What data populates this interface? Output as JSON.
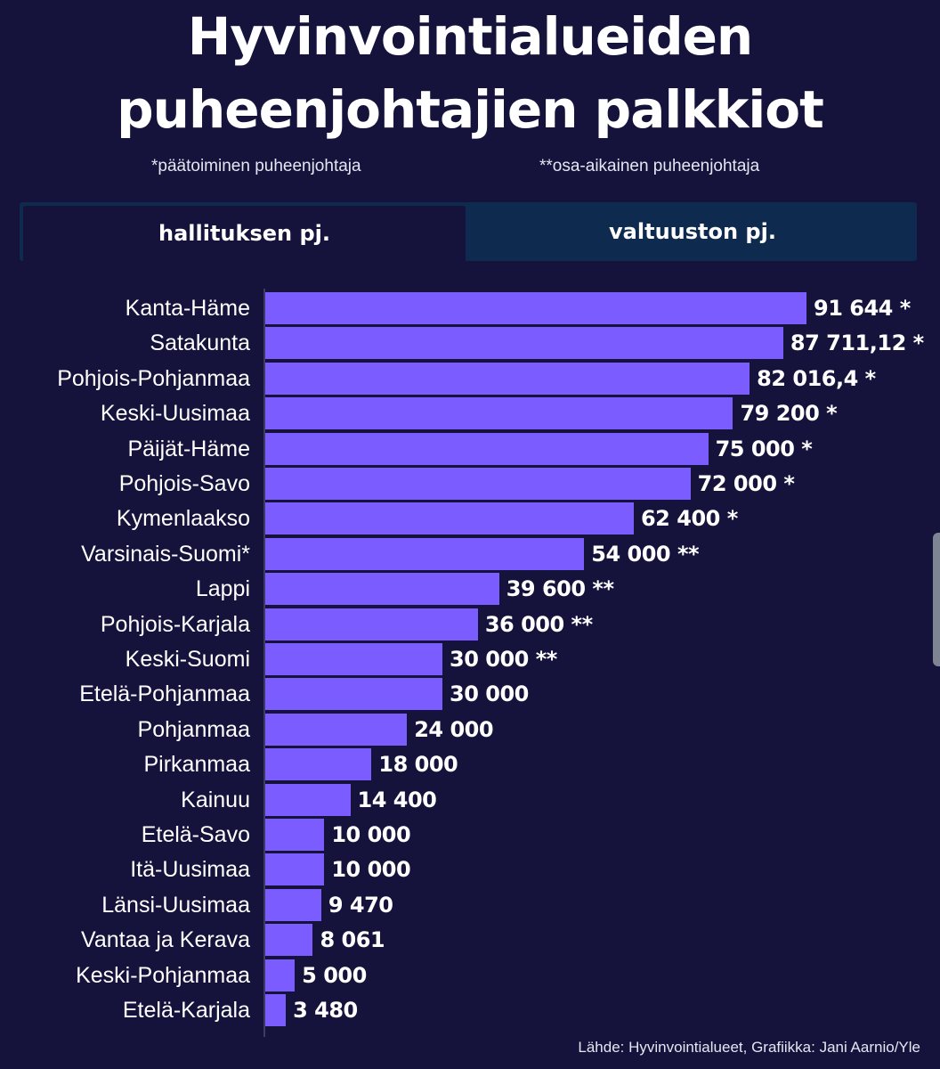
{
  "title": {
    "line1": "Hyvinvointialueiden",
    "line2": "puheenjohtajien palkkiot"
  },
  "notes": {
    "fulltime": "*päätoiminen puheenjohtaja",
    "parttime": "**osa-aikainen puheenjohtaja"
  },
  "tabs": [
    {
      "label": "hallituksen pj.",
      "active": true
    },
    {
      "label": "valtuuston pj.",
      "active": false
    }
  ],
  "source": "Lähde: Hyvinvointialueet, Grafiikka: Jani Aarnio/Yle",
  "colors": {
    "background": "#15123b",
    "bar": "#7a5cff",
    "tab_bar": "#0e2a4e"
  },
  "chart_data": {
    "type": "bar",
    "orientation": "horizontal",
    "title": "Hyvinvointialueiden puheenjohtajien palkkiot",
    "categories": [
      "Kanta-Häme",
      "Satakunta",
      "Pohjois-Pohjanmaa",
      "Keski-Uusimaa",
      "Päijät-Häme",
      "Pohjois-Savo",
      "Kymenlaakso",
      "Varsinais-Suomi*",
      "Lappi",
      "Pohjois-Karjala",
      "Keski-Suomi",
      "Etelä-Pohjanmaa",
      "Pohjanmaa",
      "Pirkanmaa",
      "Kainuu",
      "Etelä-Savo",
      "Itä-Uusimaa",
      "Länsi-Uusimaa",
      "Vantaa ja Kerava",
      "Keski-Pohjanmaa",
      "Etelä-Karjala"
    ],
    "values": [
      91644,
      87711.12,
      82016.4,
      79200,
      75000,
      72000,
      62400,
      54000,
      39600,
      36000,
      30000,
      30000,
      24000,
      18000,
      14400,
      10000,
      10000,
      9470,
      8061,
      5000,
      3480
    ],
    "value_labels": [
      "91 644 *",
      "87 711,12 *",
      "82 016,4 *",
      "79 200 *",
      "75 000 *",
      "72 000 *",
      "62 400 *",
      "54 000 **",
      "39 600 **",
      "36 000 **",
      "30 000 **",
      "30 000",
      "24 000",
      "18 000",
      "14 400",
      "10 000",
      "10 000",
      "9 470",
      "8 061",
      "5 000",
      "3 480"
    ],
    "xlim": [
      0,
      91644
    ],
    "grid": false,
    "legend": "none"
  }
}
